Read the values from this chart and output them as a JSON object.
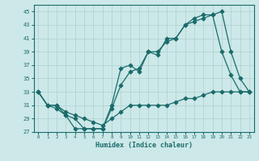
{
  "title": "",
  "xlabel": "Humidex (Indice chaleur)",
  "ylabel": "",
  "xlim": [
    -0.5,
    23.5
  ],
  "ylim": [
    27,
    46
  ],
  "yticks": [
    27,
    29,
    31,
    33,
    35,
    37,
    39,
    41,
    43,
    45
  ],
  "xticks": [
    0,
    1,
    2,
    3,
    4,
    5,
    6,
    7,
    8,
    9,
    10,
    11,
    12,
    13,
    14,
    15,
    16,
    17,
    18,
    19,
    20,
    21,
    22,
    23
  ],
  "bg_color": "#cce8e8",
  "line_color": "#1a6b6b",
  "grid_color": "#b0d0d0",
  "series1_x": [
    0,
    1,
    2,
    3,
    4,
    5,
    6,
    7,
    8,
    9,
    10,
    11,
    12,
    13,
    14,
    15,
    16,
    17,
    18,
    19,
    20,
    21,
    22,
    23
  ],
  "series1_y": [
    33,
    31,
    31,
    29.5,
    27.5,
    27.5,
    27.5,
    27.5,
    30.5,
    34,
    36,
    36.5,
    39,
    38.5,
    41,
    41,
    43,
    44,
    44.5,
    44.5,
    39,
    35.5,
    33,
    33
  ],
  "series2_x": [
    0,
    1,
    2,
    3,
    4,
    5,
    6,
    7,
    8,
    9,
    10,
    11,
    12,
    13,
    14,
    15,
    16,
    17,
    18,
    19,
    20,
    21,
    22,
    23
  ],
  "series2_y": [
    33,
    31,
    30.5,
    29.5,
    29,
    27.5,
    27.5,
    27.5,
    31,
    36.5,
    37,
    36,
    39,
    39,
    40.5,
    41,
    43,
    43.5,
    44,
    44.5,
    45,
    39,
    35,
    33
  ],
  "series3_x": [
    0,
    1,
    2,
    3,
    4,
    5,
    6,
    7,
    8,
    9,
    10,
    11,
    12,
    13,
    14,
    15,
    16,
    17,
    18,
    19,
    20,
    21,
    22,
    23
  ],
  "series3_y": [
    33,
    31,
    31,
    30,
    29.5,
    29,
    28.5,
    28,
    29,
    30,
    31,
    31,
    31,
    31,
    31,
    31.5,
    32,
    32,
    32.5,
    33,
    33,
    33,
    33,
    33
  ]
}
